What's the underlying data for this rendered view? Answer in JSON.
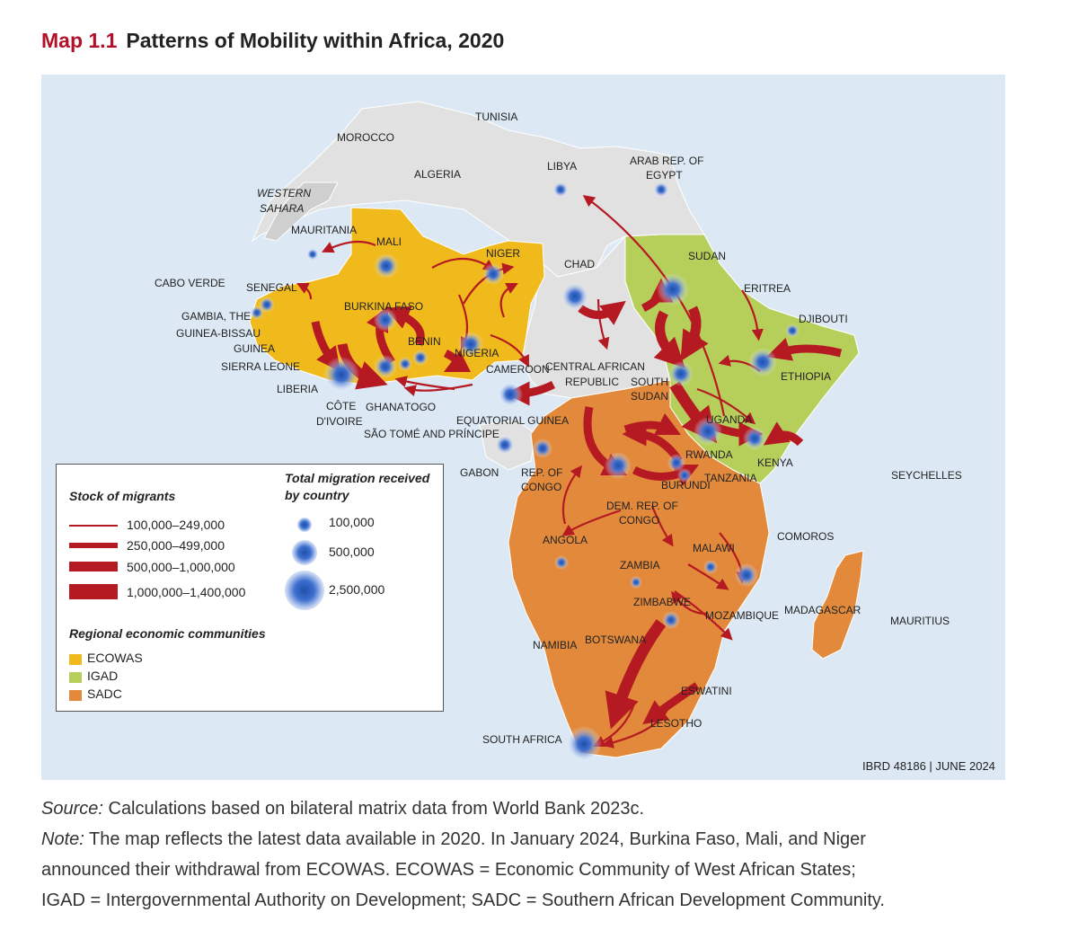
{
  "title": {
    "number": "Map 1.1",
    "text": "Patterns of Mobility within Africa, 2020"
  },
  "colors": {
    "ocean": "#dce9f5",
    "land": "#e1e1e1",
    "ecowas": "#f0b91c",
    "igad": "#b6ce5a",
    "sadc": "#e2893b",
    "flow": "#b51a22",
    "accent": "#b1122a"
  },
  "country_labels": {
    "tunisia": "TUNISIA",
    "morocco": "MOROCCO",
    "algeria": "ALGERIA",
    "libya": "LIBYA",
    "egypt_1": "ARAB REP. OF",
    "egypt_2": "EGYPT",
    "western_sahara_1": "WESTERN",
    "western_sahara_2": "SAHARA",
    "mauritania": "MAURITANIA",
    "mali": "MALI",
    "niger": "NIGER",
    "chad": "CHAD",
    "sudan": "SUDAN",
    "cabo_verde": "CABO VERDE",
    "senegal": "SENEGAL",
    "gambia": "GAMBIA, THE",
    "guinea_bissau": "GUINEA-BISSAU",
    "guinea": "GUINEA",
    "sierra_leone": "SIERRA LEONE",
    "liberia": "LIBERIA",
    "burkina_faso": "BURKINA FASO",
    "benin": "BENIN",
    "nigeria": "NIGERIA",
    "cote_1": "CÔTE",
    "cote_2": "D'IVOIRE",
    "ghana": "GHANA",
    "togo": "TOGO",
    "cameroon": "CAMEROON",
    "car_1": "CENTRAL AFRICAN",
    "car_2": "REPUBLIC",
    "south_sudan_1": "SOUTH",
    "south_sudan_2": "SUDAN",
    "eritrea": "ERITREA",
    "djibouti": "DJIBOUTI",
    "ethiopia": "ETHIOPIA",
    "eq_guinea": "EQUATORIAL GUINEA",
    "sao_tome": "SÃO TOMÉ AND PRÍNCIPE",
    "uganda": "UGANDA",
    "kenya": "KENYA",
    "rwanda": "RWANDA",
    "burundi": "BURUNDI",
    "tanzania": "TANZANIA",
    "gabon": "GABON",
    "rep_congo_1": "REP. OF",
    "rep_congo_2": "CONGO",
    "drc_1": "DEM. REP. OF",
    "drc_2": "CONGO",
    "seychelles": "SEYCHELLES",
    "comoros": "COMOROS",
    "angola": "ANGOLA",
    "malawi": "MALAWI",
    "zambia": "ZAMBIA",
    "zimbabwe": "ZIMBABWE",
    "mozambique": "MOZAMBIQUE",
    "madagascar": "MADAGASCAR",
    "mauritius": "MAURITIUS",
    "namibia": "NAMIBIA",
    "botswana": "BOTSWANA",
    "eswatini": "ESWATINI",
    "lesotho": "LESOTHO",
    "south_africa": "SOUTH AFRICA"
  },
  "legend": {
    "stock_title": "Stock of migrants",
    "stock": [
      "100,000–249,000",
      "250,000–499,000",
      "500,000–1,000,000",
      "1,000,000–1,400,000"
    ],
    "received_title_1": "Total migration received",
    "received_title_2": "by country",
    "received": [
      "100,000",
      "500,000",
      "2,500,000"
    ],
    "rec_title": "Regional economic communities",
    "communities": [
      "ECOWAS",
      "IGAD",
      "SADC"
    ]
  },
  "credit": "IBRD 48186 | JUNE 2024",
  "footer": {
    "source_label": "Source:",
    "source_text": " Calculations based on bilateral matrix data from World Bank 2023c.",
    "note_label": "Note:",
    "note_text": " The map reflects the latest data available in 2020. In January 2024, Burkina Faso, Mali, and Niger",
    "note_line2": "announced their withdrawal from ECOWAS. ECOWAS = Economic Community of West African States;",
    "note_line3": "IGAD = Intergovernmental Authority on Development; SADC = Southern African Development Community."
  }
}
